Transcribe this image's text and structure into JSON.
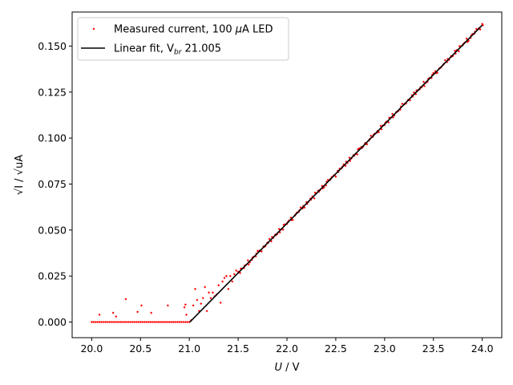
{
  "chart_data": {
    "type": "scatter",
    "title": "",
    "xlabel_var": "U",
    "xlabel_unit": " / V",
    "ylabel": "√I / √uA",
    "xlim": [
      19.8,
      24.2
    ],
    "ylim": [
      -0.0085,
      0.1685
    ],
    "xticks": [
      20.0,
      20.5,
      21.0,
      21.5,
      22.0,
      22.5,
      23.0,
      23.5,
      24.0
    ],
    "yticks": [
      0.0,
      0.025,
      0.05,
      0.075,
      0.1,
      0.125,
      0.15
    ],
    "xtick_labels": [
      "20.0",
      "20.5",
      "21.0",
      "21.5",
      "22.0",
      "22.5",
      "23.0",
      "23.5",
      "24.0"
    ],
    "ytick_labels": [
      "0.000",
      "0.025",
      "0.050",
      "0.075",
      "0.100",
      "0.125",
      "0.150"
    ],
    "grid": false,
    "legend": {
      "location": "top-left",
      "measured_label_pre": "Measured current, 100 ",
      "measured_label_mu": "μ",
      "measured_label_post": "A LED",
      "fit_label_pre": "Linear fit, V",
      "fit_label_sub": "br",
      "fit_label_post": " 21.005"
    },
    "series": [
      {
        "name": "Measured current, 100 μA LED",
        "kind": "scatter",
        "color": "#ff0000",
        "x_start": 20.0,
        "x_end": 24.0,
        "x_step": 0.02,
        "below_breakdown_value": 0.0,
        "outliers_below_breakdown": [
          [
            20.08,
            0.004
          ],
          [
            20.22,
            0.005
          ],
          [
            20.25,
            0.003
          ],
          [
            20.35,
            0.0125
          ],
          [
            20.47,
            0.0055
          ],
          [
            20.51,
            0.009
          ],
          [
            20.61,
            0.005
          ],
          [
            20.78,
            0.009
          ],
          [
            20.95,
            0.008
          ],
          [
            20.96,
            0.0095
          ],
          [
            20.97,
            0.004
          ]
        ],
        "noise_region": [
          [
            21.02,
            0.001
          ],
          [
            21.04,
            0.009
          ],
          [
            21.06,
            0.018
          ],
          [
            21.08,
            0.012
          ],
          [
            21.1,
            0.006
          ],
          [
            21.12,
            0.01
          ],
          [
            21.14,
            0.013
          ],
          [
            21.16,
            0.019
          ],
          [
            21.18,
            0.006
          ],
          [
            21.2,
            0.016
          ],
          [
            21.22,
            0.013
          ],
          [
            21.24,
            0.016
          ],
          [
            21.26,
            0.014
          ],
          [
            21.28,
            0.015
          ],
          [
            21.3,
            0.02
          ],
          [
            21.32,
            0.0105
          ],
          [
            21.34,
            0.022
          ],
          [
            21.36,
            0.024
          ],
          [
            21.38,
            0.025
          ],
          [
            21.4,
            0.018
          ],
          [
            21.42,
            0.025
          ],
          [
            21.44,
            0.022
          ],
          [
            21.46,
            0.026
          ],
          [
            21.48,
            0.028
          ]
        ],
        "slope": 0.0539,
        "intercept_x": 21.005
      },
      {
        "name": "Linear fit, V_br 21.005",
        "kind": "line",
        "color": "#000000",
        "x": [
          21.005,
          24.0
        ],
        "y": [
          0.0,
          0.1614
        ]
      }
    ]
  }
}
